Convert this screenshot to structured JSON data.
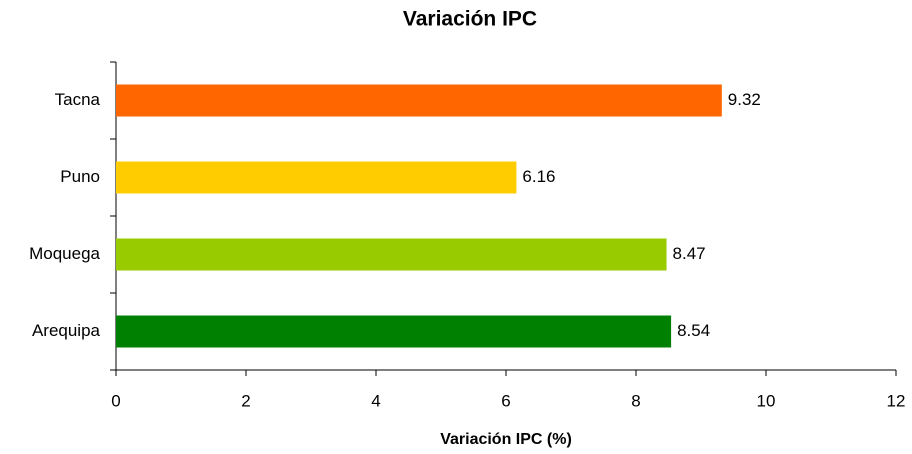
{
  "chart_data": {
    "type": "bar",
    "orientation": "horizontal",
    "title": "Variación IPC",
    "x_label": "Variación IPC (%)",
    "categories": [
      "Tacna",
      "Puno",
      "Moquega",
      "Arequipa"
    ],
    "values": [
      9.32,
      6.16,
      8.47,
      8.54
    ],
    "colors": [
      "#ff6600",
      "#ffcc00",
      "#99cc00",
      "#008000"
    ],
    "xlim": [
      0,
      12
    ],
    "xticks": [
      0,
      2,
      4,
      6,
      8,
      10,
      12
    ],
    "grid": false
  }
}
